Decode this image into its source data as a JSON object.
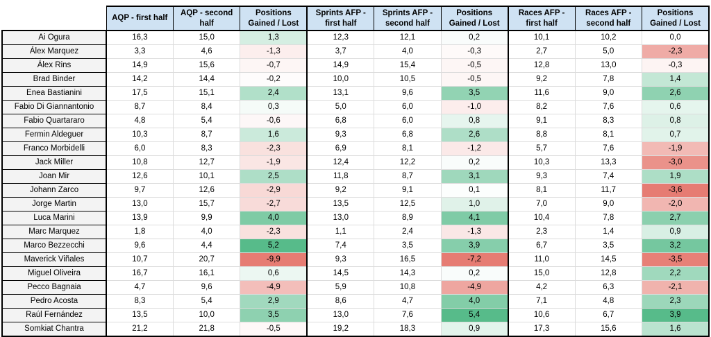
{
  "style": {
    "header_bg": "#cfe2f3",
    "name_col_bg": "#f3f3f3",
    "positive_color": "#57bb8a",
    "negative_color": "#e67c73",
    "neutral_color": "#ffffff",
    "gridline_color": "#dcdcdc",
    "frame_border_color": "#000000"
  },
  "chart_data": {
    "type": "table",
    "corner_label": "",
    "columns": [
      "AQP - first half",
      "AQP - second half",
      "Positions Gained / Lost",
      "Sprints AFP - first half",
      "Sprints AFP - second half",
      "Positions Gained / Lost",
      "Races AFP - first half",
      "Races AFP - second half",
      "Positions Gained / Lost"
    ],
    "conditional_format_column_indices": [
      2,
      5,
      8
    ],
    "group_end_column_indices": [
      2,
      5,
      8
    ],
    "rows": [
      {
        "rider": "Ai Ogura",
        "values": [
          "16,3",
          "15,0",
          "1,3",
          "12,3",
          "12,1",
          "0,2",
          "10,1",
          "10,2",
          "0,0"
        ]
      },
      {
        "rider": "Álex Marquez",
        "values": [
          "3,3",
          "4,6",
          "-1,3",
          "3,7",
          "4,0",
          "-0,3",
          "2,7",
          "5,0",
          "-2,3"
        ]
      },
      {
        "rider": "Álex Rins",
        "values": [
          "14,9",
          "15,6",
          "-0,7",
          "14,9",
          "15,4",
          "-0,5",
          "12,8",
          "13,0",
          "-0,3"
        ]
      },
      {
        "rider": "Brad Binder",
        "values": [
          "14,2",
          "14,4",
          "-0,2",
          "10,0",
          "10,5",
          "-0,5",
          "9,2",
          "7,8",
          "1,4"
        ]
      },
      {
        "rider": "Enea Bastianini",
        "values": [
          "17,5",
          "15,1",
          "2,4",
          "13,1",
          "9,6",
          "3,5",
          "11,6",
          "9,0",
          "2,6"
        ]
      },
      {
        "rider": "Fabio Di Giannantonio",
        "values": [
          "8,7",
          "8,4",
          "0,3",
          "5,0",
          "6,0",
          "-1,0",
          "8,2",
          "7,6",
          "0,6"
        ]
      },
      {
        "rider": "Fabio Quartararo",
        "values": [
          "4,8",
          "5,4",
          "-0,6",
          "6,8",
          "6,0",
          "0,8",
          "9,1",
          "8,3",
          "0,8"
        ]
      },
      {
        "rider": "Fermin Aldeguer",
        "values": [
          "10,3",
          "8,7",
          "1,6",
          "9,3",
          "6,8",
          "2,6",
          "8,8",
          "8,1",
          "0,7"
        ]
      },
      {
        "rider": "Franco Morbidelli",
        "values": [
          "6,0",
          "8,3",
          "-2,3",
          "6,9",
          "8,1",
          "-1,2",
          "5,7",
          "7,6",
          "-1,9"
        ]
      },
      {
        "rider": "Jack Miller",
        "values": [
          "10,8",
          "12,7",
          "-1,9",
          "12,4",
          "12,2",
          "0,2",
          "10,3",
          "13,3",
          "-3,0"
        ]
      },
      {
        "rider": "Joan Mir",
        "values": [
          "12,6",
          "10,1",
          "2,5",
          "11,8",
          "8,7",
          "3,1",
          "9,3",
          "7,4",
          "1,9"
        ]
      },
      {
        "rider": "Johann Zarco",
        "values": [
          "9,7",
          "12,6",
          "-2,9",
          "9,2",
          "9,1",
          "0,1",
          "8,1",
          "11,7",
          "-3,6"
        ]
      },
      {
        "rider": "Jorge Martin",
        "values": [
          "13,0",
          "15,7",
          "-2,7",
          "13,5",
          "12,5",
          "1,0",
          "7,0",
          "9,0",
          "-2,0"
        ]
      },
      {
        "rider": "Luca Marini",
        "values": [
          "13,9",
          "9,9",
          "4,0",
          "13,0",
          "8,9",
          "4,1",
          "10,4",
          "7,8",
          "2,7"
        ]
      },
      {
        "rider": "Marc Marquez",
        "values": [
          "1,8",
          "4,0",
          "-2,3",
          "1,1",
          "2,4",
          "-1,3",
          "2,3",
          "1,4",
          "0,9"
        ]
      },
      {
        "rider": "Marco Bezzecchi",
        "values": [
          "9,6",
          "4,4",
          "5,2",
          "7,4",
          "3,5",
          "3,9",
          "6,7",
          "3,5",
          "3,2"
        ]
      },
      {
        "rider": "Maverick Viñales",
        "values": [
          "10,7",
          "20,7",
          "-9,9",
          "9,3",
          "16,5",
          "-7,2",
          "11,0",
          "14,5",
          "-3,5"
        ]
      },
      {
        "rider": "Miguel Oliveira",
        "values": [
          "16,7",
          "16,1",
          "0,6",
          "14,5",
          "14,3",
          "0,2",
          "15,0",
          "12,8",
          "2,2"
        ]
      },
      {
        "rider": "Pecco Bagnaia",
        "values": [
          "4,7",
          "9,6",
          "-4,9",
          "5,9",
          "10,8",
          "-4,9",
          "4,2",
          "6,3",
          "-2,1"
        ]
      },
      {
        "rider": "Pedro Acosta",
        "values": [
          "8,3",
          "5,4",
          "2,9",
          "8,6",
          "4,7",
          "4,0",
          "7,1",
          "4,8",
          "2,3"
        ]
      },
      {
        "rider": "Raúl Fernández",
        "values": [
          "13,5",
          "10,0",
          "3,5",
          "13,0",
          "7,6",
          "5,4",
          "10,6",
          "6,7",
          "3,9"
        ]
      },
      {
        "rider": "Somkiat Chantra",
        "values": [
          "21,2",
          "21,8",
          "-0,5",
          "19,2",
          "18,3",
          "0,9",
          "17,3",
          "15,6",
          "1,6"
        ]
      }
    ]
  }
}
